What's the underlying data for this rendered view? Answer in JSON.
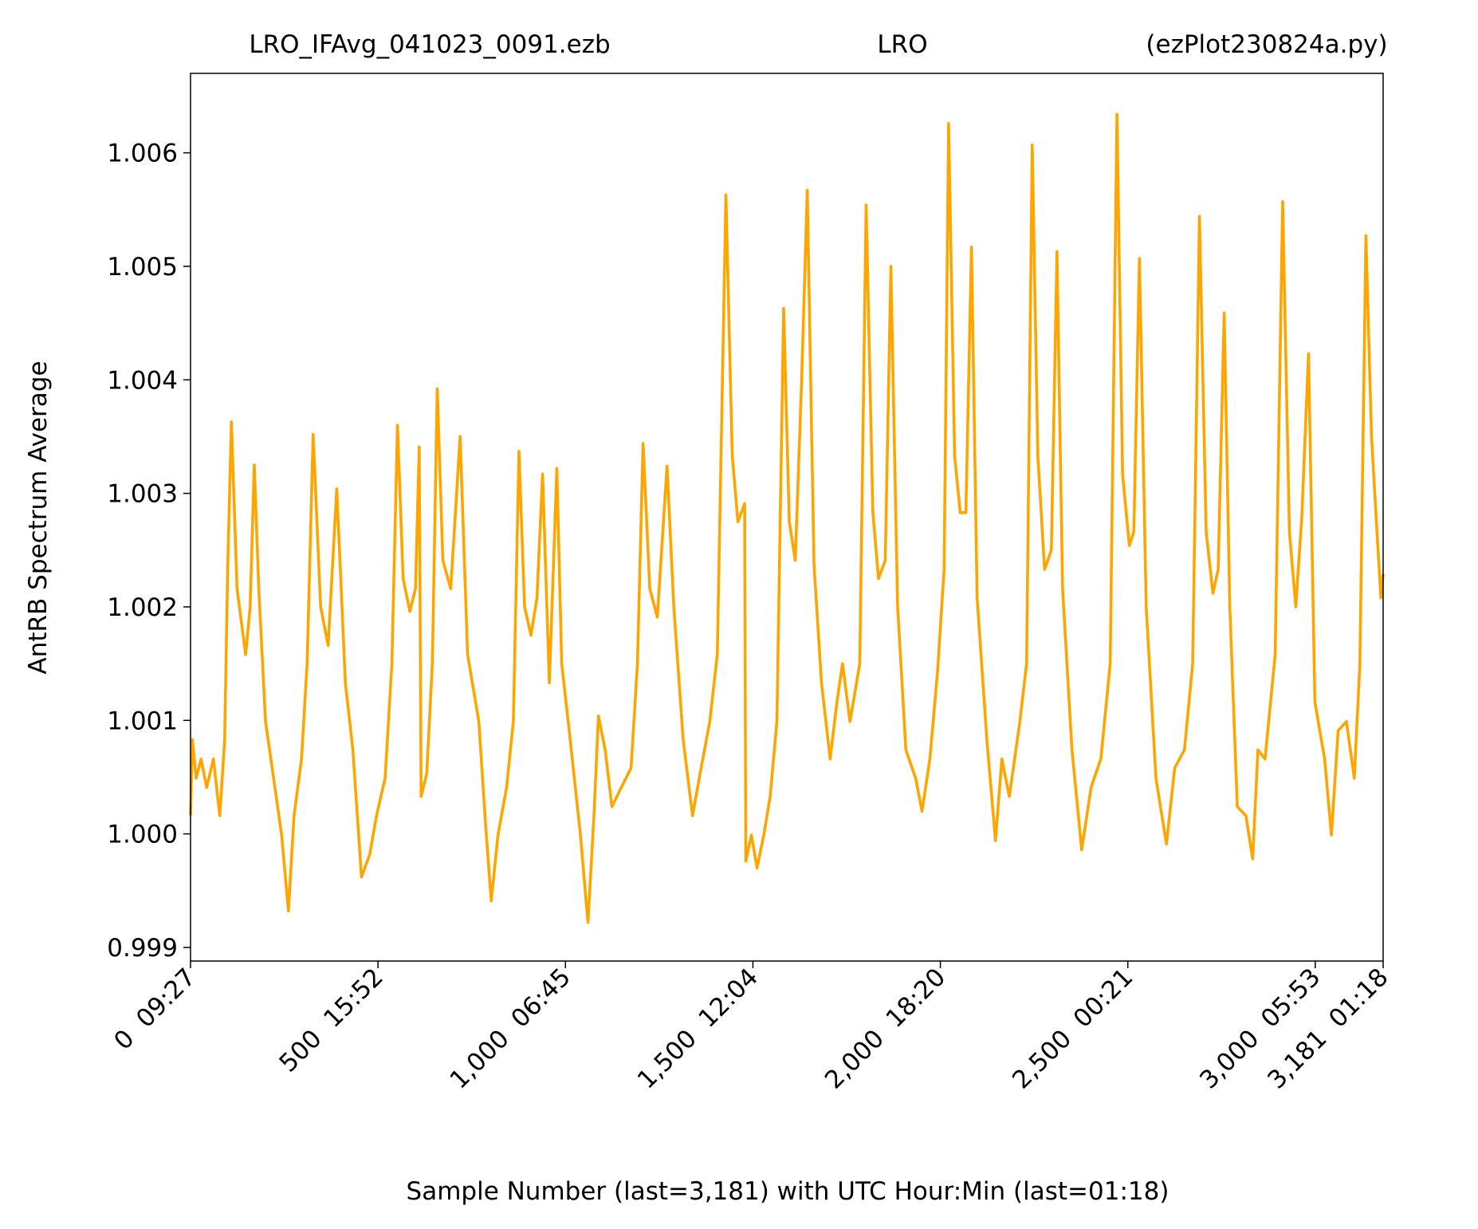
{
  "chart_data": {
    "type": "line",
    "titles": [
      "LRO_IFAvg_041023_0091.ezb",
      "LRO",
      "(ezPlot230824a.py)"
    ],
    "xlabel": "Sample Number (last=3,181) with UTC Hour:Min (last=01:18)",
    "ylabel": "AntRB Spectrum Average",
    "xlim": [
      0,
      3181
    ],
    "ylim": [
      0.99888,
      1.0067
    ],
    "xticks": [
      {
        "value": 0,
        "label": "0  09:27"
      },
      {
        "value": 500,
        "label": "500  15:52"
      },
      {
        "value": 1000,
        "label": "1,000  06:45"
      },
      {
        "value": 1500,
        "label": "1,500  12:04"
      },
      {
        "value": 2000,
        "label": "2,000  18:20"
      },
      {
        "value": 2500,
        "label": "2,500  00:21"
      },
      {
        "value": 3000,
        "label": "3,000  05:53"
      },
      {
        "value": 3181,
        "label": "3,181  01:18"
      }
    ],
    "yticks": [
      0.999,
      {
        "value": 1,
        "label": "1.000"
      },
      1.001,
      1.002,
      1.003,
      1.004,
      1.005,
      1.006
    ],
    "grid": false,
    "series": [
      {
        "color": "#ffa500",
        "x": [
          0,
          5,
          15,
          28,
          43,
          61,
          78,
          91,
          99,
          109,
          124,
          147,
          159,
          170,
          182,
          200,
          225,
          243,
          261,
          276,
          296,
          311,
          327,
          347,
          367,
          390,
          413,
          433,
          456,
          478,
          496,
          519,
          537,
          552,
          567,
          585,
          600,
          610,
          615,
          630,
          645,
          658,
          673,
          694,
          719,
          739,
          769,
          787,
          802,
          820,
          843,
          861,
          876,
          891,
          908,
          924,
          939,
          957,
          977,
          990,
          1010,
          1040,
          1060,
          1076,
          1088,
          1106,
          1124,
          1149,
          1175,
          1192,
          1207,
          1225,
          1245,
          1271,
          1289,
          1314,
          1339,
          1359,
          1385,
          1405,
          1428,
          1445,
          1460,
          1478,
          1481,
          1496,
          1511,
          1529,
          1546,
          1564,
          1582,
          1597,
          1613,
          1630,
          1645,
          1663,
          1683,
          1706,
          1724,
          1739,
          1759,
          1785,
          1802,
          1820,
          1835,
          1853,
          1868,
          1886,
          1908,
          1934,
          1951,
          1972,
          1992,
          2010,
          2022,
          2038,
          2053,
          2068,
          2083,
          2098,
          2124,
          2147,
          2164,
          2184,
          2212,
          2230,
          2245,
          2260,
          2278,
          2296,
          2311,
          2326,
          2351,
          2377,
          2402,
          2428,
          2453,
          2471,
          2486,
          2504,
          2516,
          2531,
          2549,
          2575,
          2603,
          2625,
          2651,
          2673,
          2691,
          2709,
          2727,
          2741,
          2757,
          2772,
          2792,
          2815,
          2833,
          2847,
          2866,
          2893,
          2913,
          2931,
          2948,
          2964,
          2982,
          2999,
          3025,
          3043,
          3061,
          3083,
          3104,
          3119,
          3135,
          3150,
          3166,
          3175,
          3181
        ],
        "values": [
          1.00016,
          1.00083,
          1.00049,
          1.00066,
          1.00041,
          1.00066,
          1.00016,
          1.00083,
          1.00233,
          1.00363,
          1.00216,
          1.00158,
          1.002,
          1.00325,
          1.00216,
          1.00099,
          1.00041,
          0.99999,
          0.99932,
          1.00016,
          1.00066,
          1.0015,
          1.00352,
          1.002,
          1.00166,
          1.00304,
          1.00133,
          1.00074,
          0.99962,
          0.99982,
          1.00016,
          1.00049,
          1.0015,
          1.0036,
          1.00225,
          1.00196,
          1.00216,
          1.00341,
          1.00033,
          1.00053,
          1.0015,
          1.00392,
          1.00241,
          1.00216,
          1.0035,
          1.00158,
          1.00099,
          1.00008,
          0.99941,
          0.99999,
          1.00041,
          1.00099,
          1.00337,
          1.002,
          1.00175,
          1.00208,
          1.00317,
          1.00133,
          1.00322,
          1.0015,
          1.00091,
          0.99999,
          0.99922,
          1.00016,
          1.00104,
          1.00074,
          1.00024,
          1.00041,
          1.00058,
          1.0015,
          1.00344,
          1.00216,
          1.00191,
          1.00324,
          1.002,
          1.00083,
          1.00016,
          1.00053,
          1.00099,
          1.00158,
          1.00563,
          1.00333,
          1.00275,
          1.00291,
          0.99976,
          0.99999,
          0.9997,
          0.99999,
          1.00033,
          1.00099,
          1.00463,
          1.00275,
          1.00241,
          1.004,
          1.00567,
          1.00237,
          1.00133,
          1.00066,
          1.00116,
          1.0015,
          1.00099,
          1.0015,
          1.00554,
          1.00283,
          1.00225,
          1.00241,
          1.005,
          1.002,
          1.00074,
          1.00049,
          1.0002,
          1.00066,
          1.00141,
          1.00233,
          1.00626,
          1.00333,
          1.00283,
          1.00283,
          1.00517,
          1.00208,
          1.00083,
          0.99994,
          1.00066,
          1.00033,
          1.00099,
          1.0015,
          1.00607,
          1.00333,
          1.00233,
          1.0025,
          1.00513,
          1.00216,
          1.00074,
          0.99986,
          1.00041,
          1.00066,
          1.0015,
          1.00634,
          1.00317,
          1.00254,
          1.00266,
          1.00507,
          1.002,
          1.00049,
          0.99991,
          1.00058,
          1.00074,
          1.0015,
          1.00544,
          1.00266,
          1.00212,
          1.00233,
          1.00459,
          1.002,
          1.00024,
          1.00016,
          0.99978,
          1.00074,
          1.00066,
          1.00158,
          1.00557,
          1.00266,
          1.002,
          1.00279,
          1.00423,
          1.00116,
          1.00066,
          0.99999,
          1.00091,
          1.00099,
          1.00049,
          1.0015,
          1.00527,
          1.0035,
          1.00258,
          1.00208,
          1.00229
        ]
      }
    ]
  }
}
